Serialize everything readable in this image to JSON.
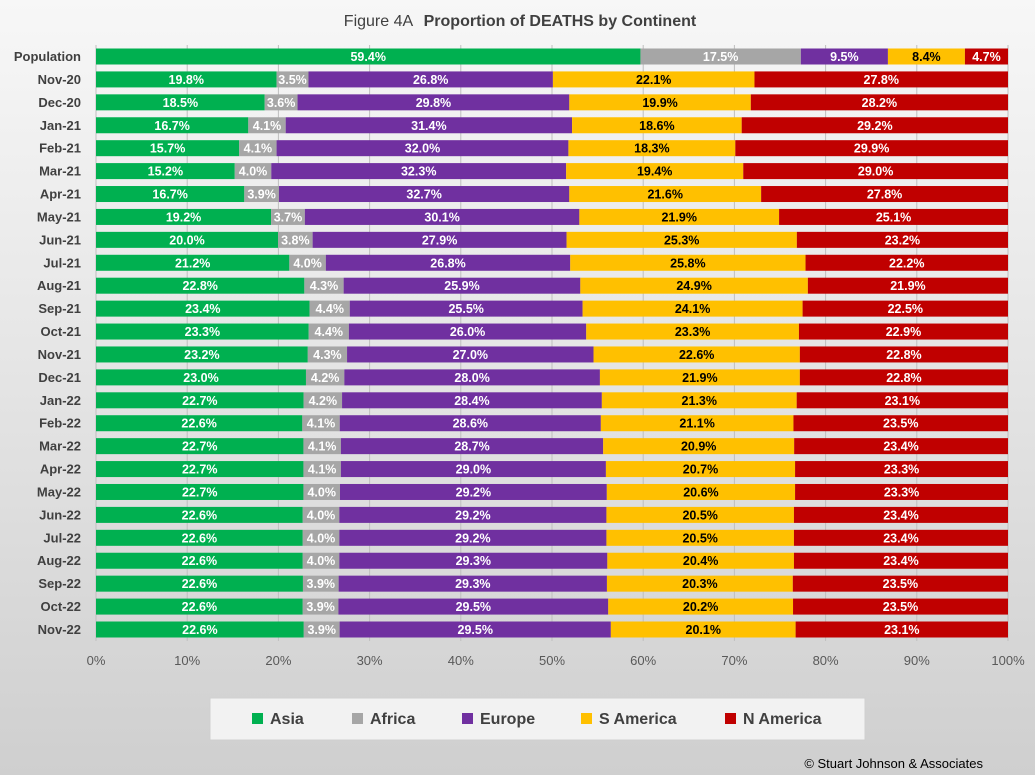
{
  "chart_data": {
    "type": "bar",
    "orientation": "horizontal",
    "stacked": "100%",
    "title_prefix": "Figure  4A",
    "title": "Proportion of DEATHS by Continent",
    "categories": [
      "Population",
      "Nov-20",
      "Dec-20",
      "Jan-21",
      "Feb-21",
      "Mar-21",
      "Apr-21",
      "May-21",
      "Jun-21",
      "Jul-21",
      "Aug-21",
      "Sep-21",
      "Oct-21",
      "Nov-21",
      "Dec-21",
      "Jan-22",
      "Feb-22",
      "Mar-22",
      "Apr-22",
      "May-22",
      "Jun-22",
      "Jul-22",
      "Aug-22",
      "Sep-22",
      "Oct-22",
      "Nov-22"
    ],
    "series": [
      {
        "name": "Asia",
        "color": "#00b050",
        "label_color": "#ffffff",
        "values": [
          59.4,
          19.8,
          18.5,
          16.7,
          15.7,
          15.2,
          16.7,
          19.2,
          20.0,
          21.2,
          22.8,
          23.4,
          23.3,
          23.2,
          23.0,
          22.7,
          22.6,
          22.7,
          22.7,
          22.7,
          22.6,
          22.6,
          22.6,
          22.6,
          22.6,
          22.6
        ]
      },
      {
        "name": "Africa",
        "color": "#a6a6a6",
        "label_color": "#ffffff",
        "values": [
          17.5,
          3.5,
          3.6,
          4.1,
          4.1,
          4.0,
          3.9,
          3.7,
          3.8,
          4.0,
          4.3,
          4.4,
          4.4,
          4.3,
          4.2,
          4.2,
          4.1,
          4.1,
          4.1,
          4.0,
          4.0,
          4.0,
          4.0,
          3.9,
          3.9,
          3.9
        ]
      },
      {
        "name": "Europe",
        "color": "#7030a0",
        "label_color": "#ffffff",
        "values": [
          9.5,
          26.8,
          29.8,
          31.4,
          32.0,
          32.3,
          32.7,
          30.1,
          27.9,
          26.8,
          25.9,
          25.5,
          26.0,
          27.0,
          28.0,
          28.4,
          28.6,
          28.7,
          29.0,
          29.2,
          29.2,
          29.2,
          29.3,
          29.3,
          29.5,
          29.5
        ]
      },
      {
        "name": "S America",
        "color": "#ffc000",
        "label_color": "#000000",
        "values": [
          8.4,
          22.1,
          19.9,
          18.6,
          18.3,
          19.4,
          21.6,
          21.9,
          25.3,
          25.8,
          24.9,
          24.1,
          23.3,
          22.6,
          21.9,
          21.3,
          21.1,
          20.9,
          20.7,
          20.6,
          20.5,
          20.5,
          20.4,
          20.3,
          20.2,
          20.1
        ]
      },
      {
        "name": "N America",
        "color": "#c00000",
        "label_color": "#ffffff",
        "values": [
          4.7,
          27.8,
          28.2,
          29.2,
          29.9,
          29.0,
          27.8,
          25.1,
          23.2,
          22.2,
          21.9,
          22.5,
          22.9,
          22.8,
          22.8,
          23.1,
          23.5,
          23.4,
          23.3,
          23.3,
          23.4,
          23.4,
          23.4,
          23.5,
          23.5,
          23.1
        ]
      }
    ],
    "xlim": [
      0,
      100
    ],
    "xticks": [
      "0%",
      "10%",
      "20%",
      "30%",
      "40%",
      "50%",
      "60%",
      "70%",
      "80%",
      "90%",
      "100%"
    ],
    "grid": true,
    "legend_position": "bottom"
  },
  "copyright": "© Stuart Johnson & Associates"
}
